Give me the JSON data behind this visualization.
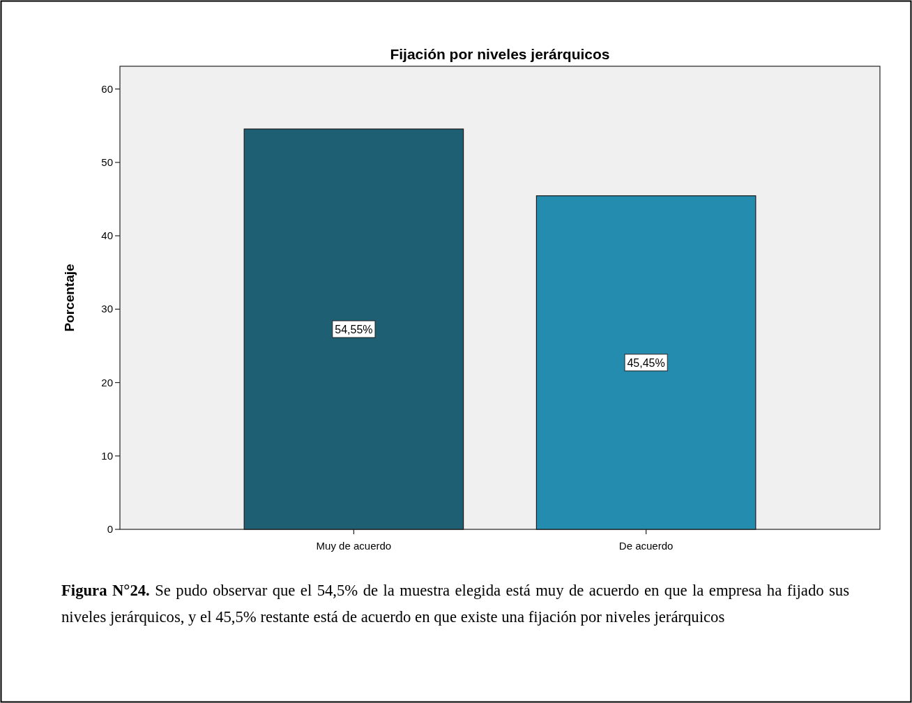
{
  "chart_data": {
    "type": "bar",
    "title": "Fijación por niveles jerárquicos",
    "ylabel": "Porcentaje",
    "categories": [
      "Muy de acuerdo",
      "De acuerdo"
    ],
    "values": [
      54.55,
      45.45
    ],
    "colors": [
      "#1f5f74",
      "#248caf"
    ],
    "value_labels": [
      "54,55%",
      "45,45%"
    ],
    "ylim": [
      0,
      63.1
    ],
    "yticks": [
      0,
      10,
      20,
      30,
      40,
      50,
      60
    ],
    "grid": false,
    "annotations": [
      "Figura N°24.",
      "Se pudo observar que el 54,5% de la muestra elegida está muy de acuerdo en que la empresa ha fijado sus niveles jerárquicos, y el 45,5% restante está de acuerdo en que existe una fijación por niveles jerárquicos"
    ]
  }
}
